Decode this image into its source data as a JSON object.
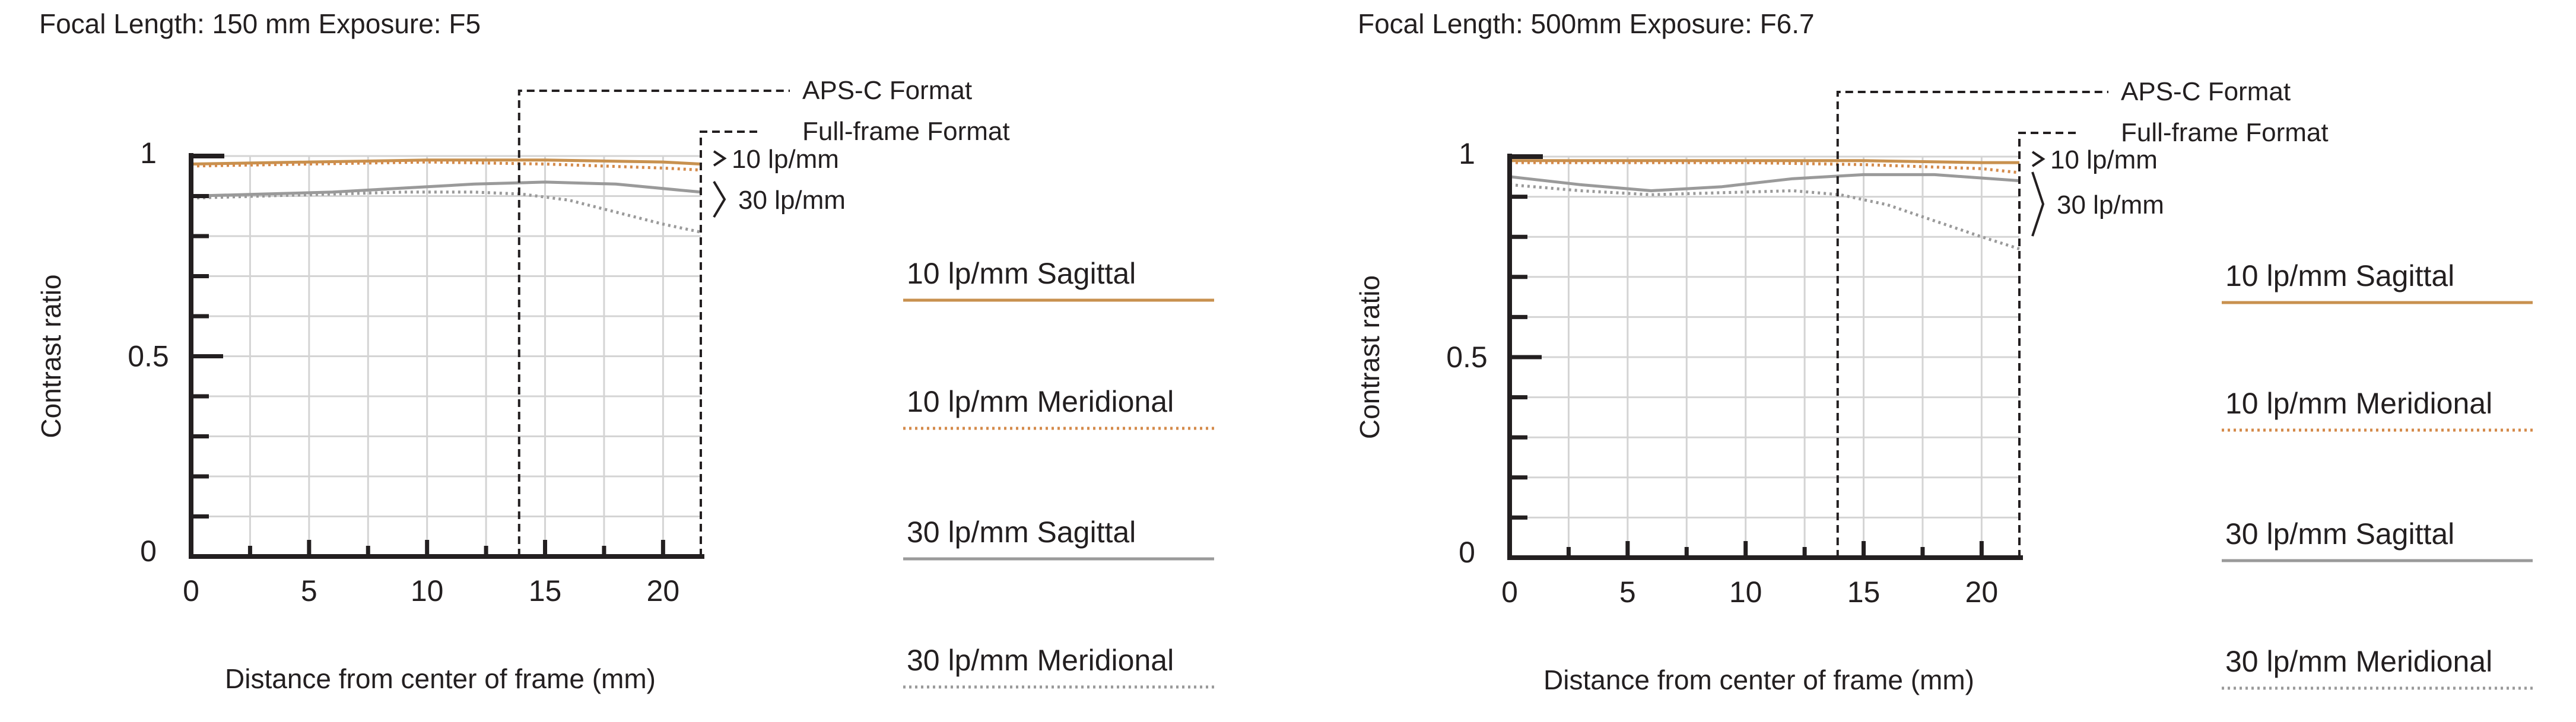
{
  "colors": {
    "axis": "#231f20",
    "grid": "#d4d4d4",
    "sagittal_10": "#c8914f",
    "meridional_10": "#d48a4a",
    "sagittal_30": "#9a9a9a",
    "meridional_30": "#9a9a9a"
  },
  "chart_data": [
    {
      "type": "line",
      "title": "Focal Length: 150 mm   Exposure: F5",
      "xlabel": "Distance from center of frame (mm)",
      "ylabel": "Contrast ratio",
      "xlim": [
        0,
        21.6
      ],
      "ylim": [
        0,
        1
      ],
      "x_ticks": [
        0,
        5,
        10,
        15,
        20
      ],
      "y_ticks": [
        0,
        0.5,
        1
      ],
      "grid": true,
      "format_markers": [
        {
          "label": "APS-C Format",
          "x": 13.9
        },
        {
          "label": "Full-frame Format",
          "x": 21.6
        }
      ],
      "group_labels": [
        "10 lp/mm",
        "30 lp/mm"
      ],
      "series": [
        {
          "name": "10 lp/mm Sagittal",
          "style": "solid",
          "color_key": "sagittal_10",
          "x": [
            0,
            5,
            10,
            15,
            20,
            21.6
          ],
          "y": [
            0.98,
            0.985,
            0.99,
            0.99,
            0.985,
            0.98
          ]
        },
        {
          "name": "10 lp/mm Meridional",
          "style": "dotted",
          "color_key": "meridional_10",
          "x": [
            0,
            5,
            10,
            15,
            20,
            21.6
          ],
          "y": [
            0.975,
            0.98,
            0.985,
            0.98,
            0.97,
            0.965
          ]
        },
        {
          "name": "30 lp/mm Sagittal",
          "style": "solid",
          "color_key": "sagittal_30",
          "x": [
            0,
            3,
            6,
            9,
            12,
            15,
            18,
            21.6
          ],
          "y": [
            0.9,
            0.905,
            0.91,
            0.92,
            0.93,
            0.935,
            0.93,
            0.91
          ]
        },
        {
          "name": "30 lp/mm Meridional",
          "style": "dotted",
          "color_key": "meridional_30",
          "x": [
            0,
            3,
            6,
            9,
            12,
            14,
            16,
            18,
            20,
            21.6
          ],
          "y": [
            0.895,
            0.9,
            0.905,
            0.91,
            0.91,
            0.905,
            0.89,
            0.86,
            0.83,
            0.81
          ]
        }
      ]
    },
    {
      "type": "line",
      "title": "Focal Length: 500mm   Exposure: F6.7",
      "xlabel": "Distance from center of frame (mm)",
      "ylabel": "Contrast ratio",
      "xlim": [
        0,
        21.6
      ],
      "ylim": [
        0,
        1
      ],
      "x_ticks": [
        0,
        5,
        10,
        15,
        20
      ],
      "y_ticks": [
        0,
        0.5,
        1
      ],
      "grid": true,
      "format_markers": [
        {
          "label": "APS-C Format",
          "x": 13.9
        },
        {
          "label": "Full-frame Format",
          "x": 21.6
        }
      ],
      "group_labels": [
        "10 lp/mm",
        "30 lp/mm"
      ],
      "series": [
        {
          "name": "10 lp/mm Sagittal",
          "style": "solid",
          "color_key": "sagittal_10",
          "x": [
            0,
            5,
            10,
            15,
            20,
            21.6
          ],
          "y": [
            0.99,
            0.99,
            0.99,
            0.99,
            0.985,
            0.985
          ]
        },
        {
          "name": "10 lp/mm Meridional",
          "style": "dotted",
          "color_key": "meridional_10",
          "x": [
            0,
            5,
            10,
            15,
            20,
            21.6
          ],
          "y": [
            0.985,
            0.985,
            0.985,
            0.98,
            0.97,
            0.96
          ]
        },
        {
          "name": "30 lp/mm Sagittal",
          "style": "solid",
          "color_key": "sagittal_30",
          "x": [
            0,
            3,
            6,
            9,
            12,
            15,
            18,
            21.6
          ],
          "y": [
            0.95,
            0.93,
            0.915,
            0.925,
            0.945,
            0.955,
            0.955,
            0.94
          ]
        },
        {
          "name": "30 lp/mm Meridional",
          "style": "dotted",
          "color_key": "meridional_30",
          "x": [
            0,
            3,
            6,
            9,
            12,
            14,
            16,
            18,
            20,
            21.6
          ],
          "y": [
            0.93,
            0.915,
            0.905,
            0.91,
            0.915,
            0.905,
            0.88,
            0.84,
            0.8,
            0.77
          ]
        }
      ]
    }
  ]
}
